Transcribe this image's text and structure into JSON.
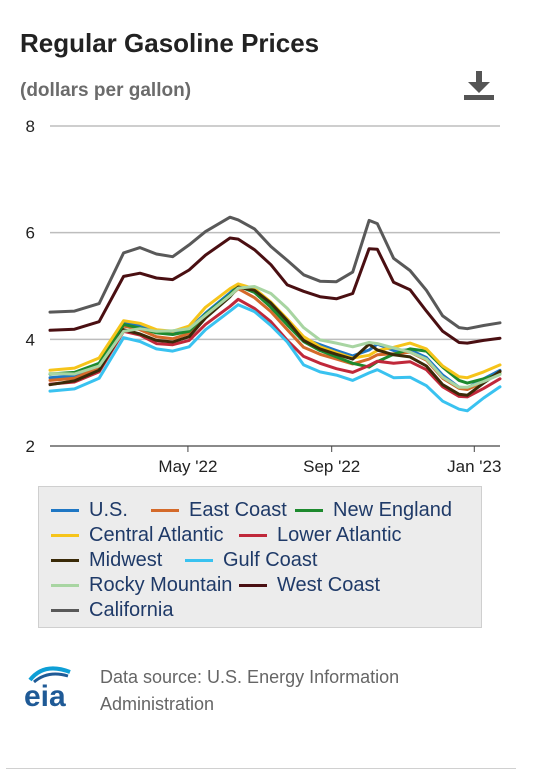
{
  "header": {
    "title": "Regular Gasoline Prices",
    "subtitle": "(dollars per gallon)",
    "download_icon": "download-icon"
  },
  "chart_data": {
    "type": "line",
    "title": "Regular Gasoline Prices",
    "ylabel": "(dollars per gallon)",
    "ylim": [
      2,
      8
    ],
    "yticks": [
      "8",
      "6",
      "4",
      "2"
    ],
    "xticks": [
      {
        "label": "May '22",
        "x": "2022-05-01"
      },
      {
        "label": "Sep '22",
        "x": "2022-09-01"
      },
      {
        "label": "Jan '23",
        "x": "2023-01-01"
      }
    ],
    "xlim": [
      "2022-01-03",
      "2023-01-23"
    ],
    "grid": "horizontal",
    "legend_position": "bottom",
    "x": [
      "2022-01-03",
      "2022-01-24",
      "2022-02-14",
      "2022-03-07",
      "2022-03-21",
      "2022-04-04",
      "2022-04-18",
      "2022-05-02",
      "2022-05-16",
      "2022-06-06",
      "2022-06-13",
      "2022-06-27",
      "2022-07-11",
      "2022-07-25",
      "2022-08-08",
      "2022-08-22",
      "2022-09-05",
      "2022-09-19",
      "2022-10-03",
      "2022-10-10",
      "2022-10-24",
      "2022-11-07",
      "2022-11-21",
      "2022-12-05",
      "2022-12-19",
      "2022-12-26",
      "2023-01-09",
      "2023-01-23"
    ],
    "series": [
      {
        "name": "U.S.",
        "color": "#1f77c4",
        "values": [
          3.28,
          3.32,
          3.52,
          4.32,
          4.25,
          4.16,
          4.1,
          4.19,
          4.49,
          4.87,
          5.01,
          4.88,
          4.65,
          4.32,
          4.01,
          3.9,
          3.79,
          3.69,
          3.8,
          3.91,
          3.79,
          3.8,
          3.66,
          3.33,
          3.1,
          3.09,
          3.26,
          3.42
        ]
      },
      {
        "name": "East Coast",
        "color": "#d46a2a",
        "values": [
          3.23,
          3.27,
          3.48,
          4.25,
          4.18,
          4.05,
          4.01,
          4.11,
          4.45,
          4.82,
          4.95,
          4.78,
          4.52,
          4.18,
          3.85,
          3.72,
          3.63,
          3.54,
          3.63,
          3.71,
          3.73,
          3.76,
          3.61,
          3.27,
          3.08,
          3.06,
          3.2,
          3.39
        ]
      },
      {
        "name": "New England",
        "color": "#1d8a2e",
        "values": [
          3.35,
          3.38,
          3.55,
          4.28,
          4.21,
          4.12,
          4.09,
          4.15,
          4.47,
          4.84,
          5.0,
          4.88,
          4.6,
          4.27,
          3.96,
          3.79,
          3.67,
          3.55,
          3.48,
          3.58,
          3.72,
          3.82,
          3.78,
          3.48,
          3.23,
          3.18,
          3.26,
          3.35
        ]
      },
      {
        "name": "Central Atlantic",
        "color": "#f6c41a",
        "values": [
          3.42,
          3.46,
          3.65,
          4.35,
          4.3,
          4.18,
          4.15,
          4.25,
          4.6,
          4.95,
          5.04,
          4.95,
          4.7,
          4.38,
          4.05,
          3.86,
          3.75,
          3.65,
          3.7,
          3.79,
          3.85,
          3.93,
          3.82,
          3.5,
          3.3,
          3.28,
          3.39,
          3.52
        ]
      },
      {
        "name": "Lower Atlantic",
        "color": "#c0283a",
        "values": [
          3.16,
          3.2,
          3.39,
          4.15,
          4.08,
          3.92,
          3.9,
          3.98,
          4.28,
          4.62,
          4.75,
          4.58,
          4.33,
          3.98,
          3.68,
          3.55,
          3.45,
          3.38,
          3.51,
          3.59,
          3.55,
          3.58,
          3.43,
          3.11,
          2.93,
          2.92,
          3.08,
          3.26
        ]
      },
      {
        "name": "Midwest",
        "color": "#3a2a08",
        "values": [
          3.15,
          3.22,
          3.42,
          4.18,
          4.1,
          3.98,
          3.95,
          4.05,
          4.4,
          4.8,
          4.98,
          4.92,
          4.68,
          4.35,
          3.98,
          3.82,
          3.72,
          3.63,
          3.91,
          3.8,
          3.71,
          3.67,
          3.5,
          3.15,
          2.97,
          2.95,
          3.18,
          3.4
        ]
      },
      {
        "name": "Gulf Coast",
        "color": "#39c2f0",
        "values": [
          3.03,
          3.07,
          3.27,
          4.03,
          3.96,
          3.82,
          3.78,
          3.86,
          4.18,
          4.53,
          4.65,
          4.52,
          4.26,
          3.95,
          3.52,
          3.39,
          3.33,
          3.23,
          3.37,
          3.43,
          3.28,
          3.29,
          3.13,
          2.84,
          2.69,
          2.66,
          2.9,
          3.11
        ]
      },
      {
        "name": "Rocky Mountain",
        "color": "#a8d5a2",
        "values": [
          3.36,
          3.35,
          3.5,
          4.15,
          4.2,
          4.15,
          4.16,
          4.2,
          4.45,
          4.82,
          4.96,
          4.99,
          4.86,
          4.58,
          4.22,
          3.99,
          3.93,
          3.86,
          3.94,
          3.92,
          3.84,
          3.76,
          3.63,
          3.29,
          3.1,
          3.1,
          3.21,
          3.34
        ]
      },
      {
        "name": "West Coast",
        "color": "#4a0f12",
        "values": [
          4.17,
          4.19,
          4.33,
          5.18,
          5.24,
          5.15,
          5.12,
          5.3,
          5.58,
          5.9,
          5.88,
          5.68,
          5.4,
          5.02,
          4.9,
          4.8,
          4.76,
          4.86,
          5.7,
          5.69,
          5.07,
          4.93,
          4.53,
          4.15,
          3.94,
          3.93,
          3.98,
          4.02
        ]
      },
      {
        "name": "California",
        "color": "#595959",
        "values": [
          4.51,
          4.53,
          4.67,
          5.62,
          5.72,
          5.6,
          5.55,
          5.77,
          6.02,
          6.29,
          6.24,
          6.07,
          5.74,
          5.48,
          5.21,
          5.09,
          5.08,
          5.26,
          6.23,
          6.17,
          5.52,
          5.29,
          4.92,
          4.44,
          4.22,
          4.2,
          4.26,
          4.31
        ]
      }
    ]
  },
  "legend": {
    "items": [
      {
        "label": "U.S.",
        "color": "#1f77c4"
      },
      {
        "label": "East Coast",
        "color": "#d46a2a"
      },
      {
        "label": "New England",
        "color": "#1d8a2e"
      },
      {
        "label": "Central Atlantic",
        "color": "#f6c41a"
      },
      {
        "label": "Lower Atlantic",
        "color": "#c0283a"
      },
      {
        "label": "Midwest",
        "color": "#3a2a08"
      },
      {
        "label": "Gulf Coast",
        "color": "#39c2f0"
      },
      {
        "label": "Rocky Mountain",
        "color": "#a8d5a2"
      },
      {
        "label": "West Coast",
        "color": "#4a0f12"
      },
      {
        "label": "California",
        "color": "#595959"
      }
    ]
  },
  "footer": {
    "logo_text": "eia",
    "source": "Data source: U.S. Energy Information Administration",
    "brand_color": "#1f5a96",
    "accent_color": "#0e9fd6"
  }
}
